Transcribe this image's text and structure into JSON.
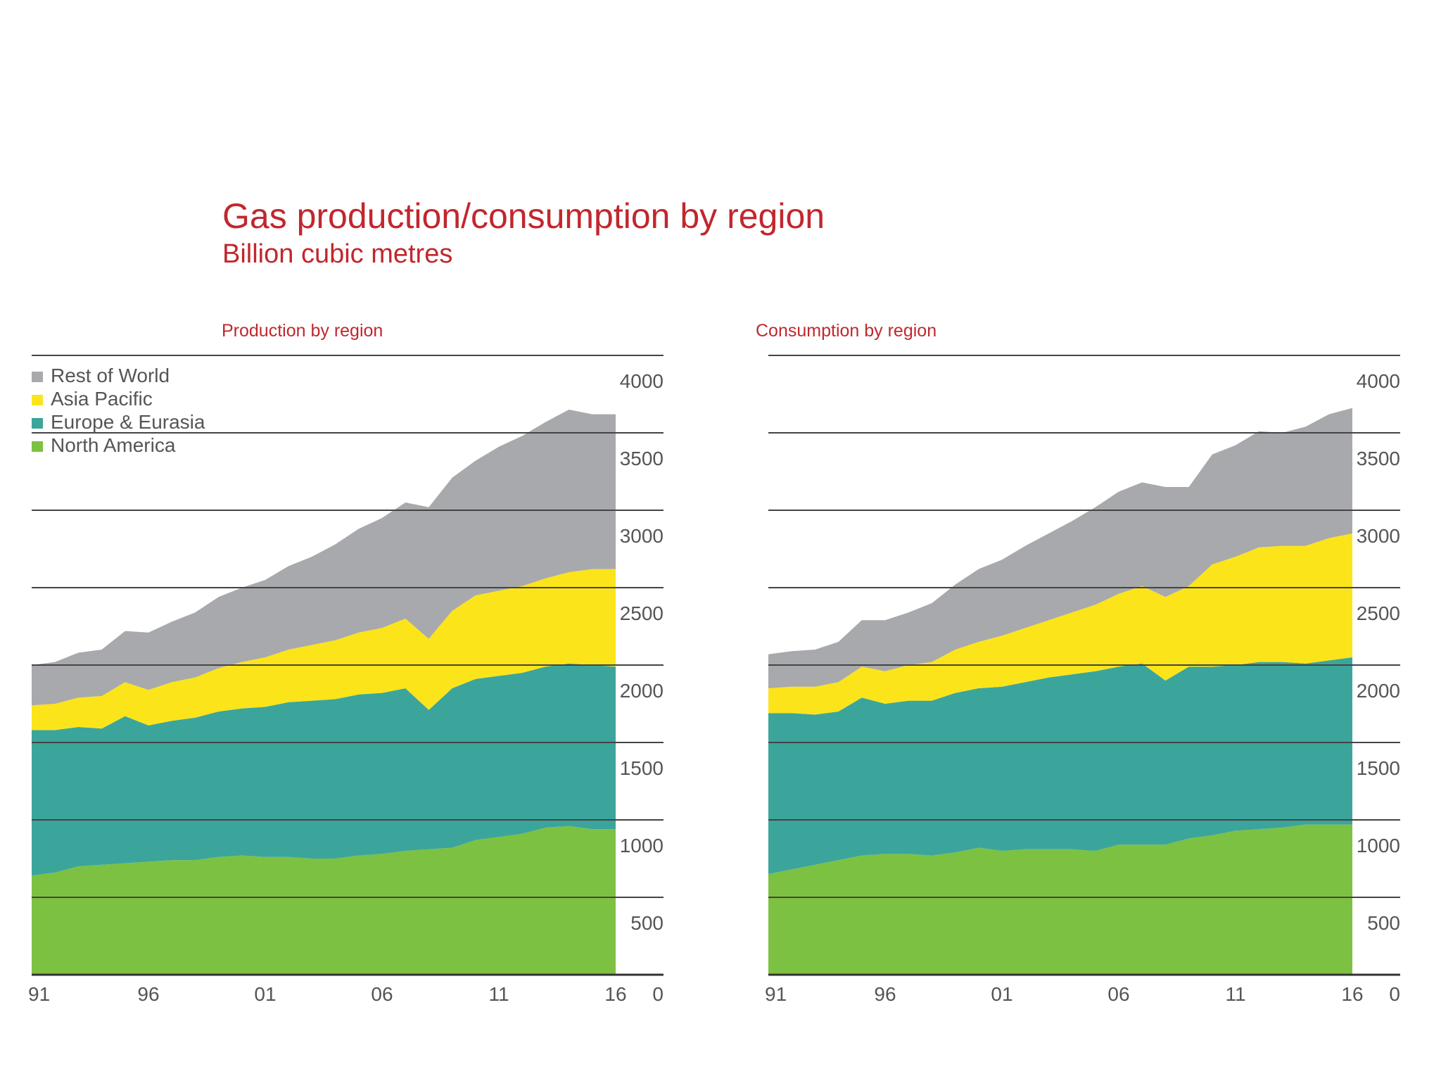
{
  "title": "Gas production/consumption by region",
  "subtitle": "Billion cubic metres",
  "chart_data": [
    {
      "type": "area",
      "stacked": true,
      "title": "Production by region",
      "x": [
        1991,
        1992,
        1993,
        1994,
        1995,
        1996,
        1997,
        1998,
        1999,
        2000,
        2001,
        2002,
        2003,
        2004,
        2005,
        2006,
        2007,
        2008,
        2009,
        2010,
        2011,
        2012,
        2013,
        2014,
        2015,
        2016
      ],
      "x_tick_labels": [
        "91",
        "96",
        "01",
        "06",
        "11",
        "16"
      ],
      "x_ticks": [
        1991,
        1996,
        2001,
        2006,
        2011,
        2016
      ],
      "y_tick_labels": [
        "500",
        "1000",
        "1500",
        "2000",
        "2500",
        "3000",
        "3500",
        "4000"
      ],
      "ylim": [
        0,
        4000
      ],
      "y_zero_label": "0",
      "grid": true,
      "legend": "top-left",
      "series": [
        {
          "name": "North America",
          "color": "#7dc142",
          "values": [
            640,
            660,
            700,
            710,
            720,
            730,
            740,
            740,
            760,
            770,
            760,
            760,
            750,
            750,
            770,
            780,
            800,
            810,
            820,
            870,
            890,
            910,
            950,
            960,
            940,
            940
          ]
        },
        {
          "name": "Europe & Eurasia",
          "color": "#3ba59c",
          "values": [
            940,
            920,
            900,
            880,
            950,
            880,
            900,
            920,
            940,
            950,
            970,
            1000,
            1020,
            1030,
            1040,
            1040,
            1050,
            900,
            1030,
            1040,
            1040,
            1040,
            1040,
            1050,
            1060,
            1050
          ]
        },
        {
          "name": "Asia Pacific",
          "color": "#fbe41a",
          "values": [
            160,
            170,
            190,
            210,
            220,
            230,
            250,
            260,
            280,
            300,
            320,
            340,
            360,
            380,
            400,
            420,
            450,
            460,
            500,
            540,
            550,
            560,
            570,
            590,
            620,
            630
          ]
        },
        {
          "name": "Rest of World",
          "color": "#a7a9ac",
          "values": [
            260,
            270,
            290,
            300,
            330,
            370,
            390,
            420,
            460,
            480,
            500,
            540,
            570,
            620,
            670,
            710,
            750,
            850,
            860,
            870,
            930,
            970,
            1010,
            1050,
            1000,
            1000
          ]
        }
      ]
    },
    {
      "type": "area",
      "stacked": true,
      "title": "Consumption by region",
      "x": [
        1991,
        1992,
        1993,
        1994,
        1995,
        1996,
        1997,
        1998,
        1999,
        2000,
        2001,
        2002,
        2003,
        2004,
        2005,
        2006,
        2007,
        2008,
        2009,
        2010,
        2011,
        2012,
        2013,
        2014,
        2015,
        2016
      ],
      "x_tick_labels": [
        "91",
        "96",
        "01",
        "06",
        "11",
        "16"
      ],
      "x_ticks": [
        1991,
        1996,
        2001,
        2006,
        2011,
        2016
      ],
      "y_tick_labels": [
        "500",
        "1000",
        "1500",
        "2000",
        "2500",
        "3000",
        "3500",
        "4000"
      ],
      "ylim": [
        0,
        4000
      ],
      "y_zero_label": "0",
      "grid": true,
      "series": [
        {
          "name": "North America",
          "color": "#7dc142",
          "values": [
            650,
            680,
            710,
            740,
            770,
            780,
            780,
            770,
            790,
            820,
            800,
            810,
            810,
            810,
            800,
            840,
            840,
            840,
            880,
            900,
            930,
            940,
            950,
            970,
            970,
            970
          ]
        },
        {
          "name": "Europe & Eurasia",
          "color": "#3ba59c",
          "values": [
            1040,
            1010,
            970,
            960,
            1020,
            970,
            990,
            1000,
            1030,
            1030,
            1060,
            1080,
            1110,
            1130,
            1160,
            1150,
            1170,
            1060,
            1110,
            1090,
            1070,
            1080,
            1070,
            1040,
            1060,
            1080
          ]
        },
        {
          "name": "Asia Pacific",
          "color": "#fbe41a",
          "values": [
            160,
            170,
            180,
            190,
            200,
            210,
            230,
            250,
            280,
            300,
            330,
            350,
            370,
            400,
            430,
            470,
            500,
            540,
            520,
            660,
            700,
            740,
            750,
            760,
            790,
            800
          ]
        },
        {
          "name": "Rest of World",
          "color": "#a7a9ac",
          "values": [
            220,
            230,
            240,
            260,
            300,
            330,
            340,
            380,
            420,
            470,
            490,
            530,
            560,
            590,
            630,
            660,
            670,
            710,
            640,
            710,
            720,
            750,
            730,
            770,
            800,
            810
          ]
        }
      ]
    }
  ]
}
